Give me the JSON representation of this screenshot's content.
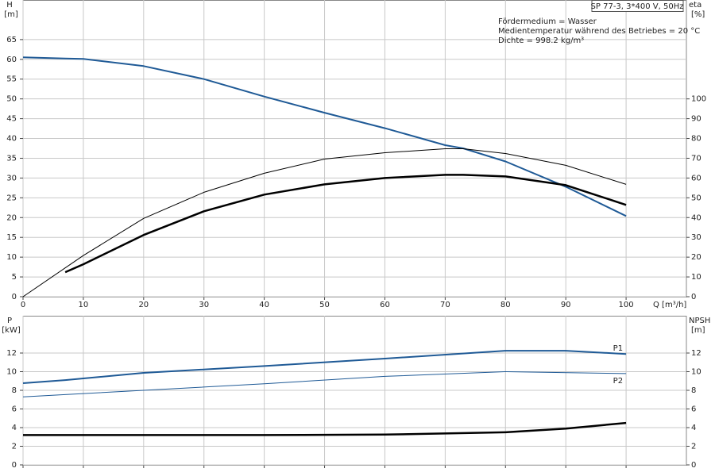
{
  "chart_data": [
    {
      "type": "line",
      "label_box": "SP 77-3, 3*400 V, 50Hz",
      "annotations": [
        "Fördermedium = Wasser",
        "Medientemperatur während des Betriebes = 20 °C",
        "Dichte = 998.2 kg/m³"
      ],
      "xlabel": "Q [m³/h]",
      "ylabel": "H",
      "yunit": "[m]",
      "y2label": "eta",
      "y2unit": "[%]",
      "xlim": [
        0,
        110
      ],
      "xticks": [
        0,
        10,
        20,
        30,
        40,
        50,
        60,
        70,
        80,
        90,
        100
      ],
      "show_xtick_labels": true,
      "ylim": [
        0,
        75
      ],
      "yticks": [
        0,
        5,
        10,
        15,
        20,
        25,
        30,
        35,
        40,
        45,
        50,
        55,
        60,
        65
      ],
      "y2lim": [
        0,
        150
      ],
      "y2ticks": [
        0,
        10,
        20,
        30,
        40,
        50,
        60,
        70,
        80,
        90,
        100
      ],
      "grid": true,
      "series": [
        {
          "color": "#1f5a96",
          "line_width": 2,
          "axis": "y",
          "x": [
            0,
            7,
            10,
            20,
            30,
            40,
            50,
            60,
            70,
            73,
            80,
            90,
            100
          ],
          "values": [
            60.5,
            60.2,
            60.1,
            58.3,
            55,
            50.6,
            46.5,
            42.6,
            38.3,
            37.5,
            34.2,
            27.8,
            20.4
          ]
        },
        {
          "color": "#000000",
          "line_width": 1,
          "axis": "y2",
          "x": [
            0,
            10,
            20,
            30,
            40,
            50,
            60,
            70,
            73,
            80,
            90,
            100
          ],
          "values": [
            0,
            20.8,
            39.6,
            52.8,
            62.4,
            69.6,
            72.8,
            74.8,
            74.8,
            72.4,
            66.4,
            56.8
          ]
        },
        {
          "color": "#000000",
          "line_width": 2.5,
          "axis": "y2",
          "x": [
            7,
            10,
            20,
            30,
            40,
            50,
            60,
            70,
            73,
            80,
            90,
            100
          ],
          "values": [
            12.4,
            16.4,
            31.2,
            43.2,
            51.6,
            56.8,
            60,
            61.6,
            61.6,
            60.8,
            56.4,
            46.4
          ]
        }
      ]
    },
    {
      "type": "line",
      "ylabel": "P",
      "yunit": "[kW]",
      "y2label": "NPSH",
      "y2unit": "[m]",
      "xlim": [
        0,
        110
      ],
      "xticks": [
        0,
        10,
        20,
        30,
        40,
        50,
        60,
        70,
        80,
        90,
        100
      ],
      "show_xtick_labels": false,
      "ylim": [
        0,
        16
      ],
      "yticks": [
        0,
        2,
        4,
        6,
        8,
        10,
        12
      ],
      "y2lim": [
        0,
        16
      ],
      "y2ticks": [
        0,
        2,
        4,
        6,
        8,
        10,
        12
      ],
      "grid": true,
      "series": [
        {
          "name": "P1",
          "color": "#1f5a96",
          "line_width": 2,
          "axis": "y",
          "x": [
            0,
            7,
            20,
            40,
            60,
            80,
            90,
            100
          ],
          "values": [
            8.77,
            9.1,
            9.87,
            10.6,
            11.4,
            12.25,
            12.25,
            11.9
          ]
        },
        {
          "name": "P2",
          "color": "#1f5a96",
          "line_width": 1,
          "axis": "y",
          "x": [
            0,
            20,
            40,
            60,
            80,
            100
          ],
          "values": [
            7.3,
            8.0,
            8.7,
            9.5,
            10.0,
            9.8
          ]
        },
        {
          "color": "#000000",
          "line_width": 2.5,
          "axis": "y2",
          "x": [
            0,
            7,
            40,
            60,
            80,
            90,
            100
          ],
          "values": [
            3.2,
            3.2,
            3.2,
            3.25,
            3.5,
            3.9,
            4.5
          ]
        }
      ]
    }
  ]
}
